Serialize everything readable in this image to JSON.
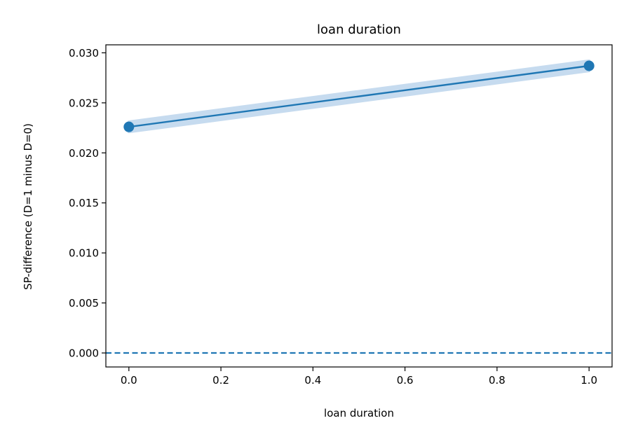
{
  "chart_data": {
    "type": "line",
    "title": "loan duration",
    "xlabel": "loan duration",
    "ylabel": "SP-difference (D=1 minus D=0)",
    "xlim": [
      -0.05,
      1.05
    ],
    "ylim": [
      -0.0014,
      0.0308
    ],
    "xticks": [
      0.0,
      0.2,
      0.4,
      0.6,
      0.8,
      1.0
    ],
    "xtick_labels": [
      "0.0",
      "0.2",
      "0.4",
      "0.6",
      "0.8",
      "1.0"
    ],
    "yticks": [
      0.0,
      0.005,
      0.01,
      0.015,
      0.02,
      0.025,
      0.03
    ],
    "ytick_labels": [
      "0.000",
      "0.005",
      "0.010",
      "0.015",
      "0.020",
      "0.025",
      "0.030"
    ],
    "grid": false,
    "legend": "none",
    "series": [
      {
        "x": [
          0.0,
          1.0
        ],
        "y": [
          0.0226,
          0.0287
        ],
        "ci_lower": [
          0.0221,
          0.0282
        ],
        "ci_upper": [
          0.0231,
          0.0292
        ],
        "color": "#1f77b4",
        "band_color": "#c6dbef",
        "markers": true
      }
    ],
    "reference_line": {
      "y": 0.0,
      "style": "dashed",
      "color": "#1f77b4"
    }
  }
}
